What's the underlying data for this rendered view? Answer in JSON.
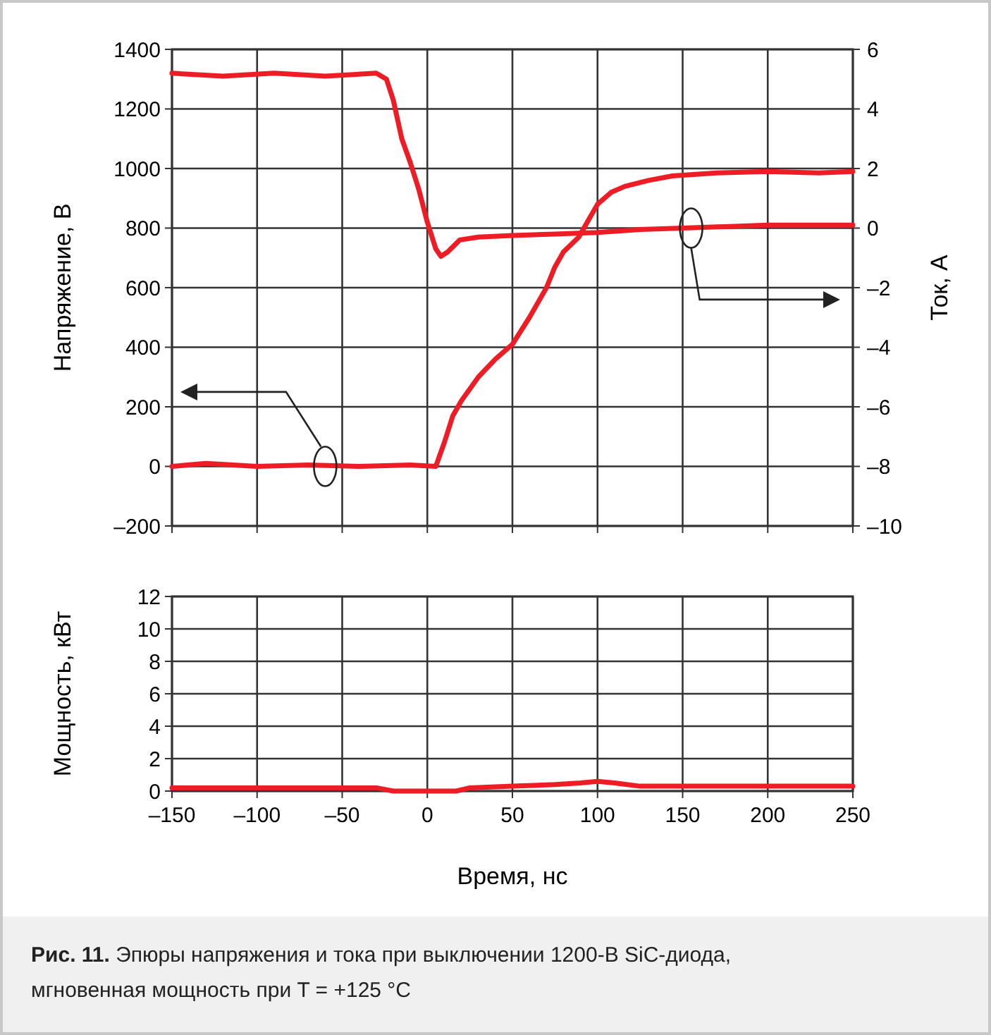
{
  "chart_data": [
    {
      "type": "line",
      "xlim": [
        -150,
        250
      ],
      "xticks": [
        -150,
        -100,
        -50,
        0,
        50,
        100,
        150,
        200,
        250
      ],
      "ylim": [
        -200,
        1400
      ],
      "yticks": [
        {
          "value": -200,
          "label": "–200"
        },
        0,
        200,
        400,
        600,
        800,
        1000,
        1200,
        1400
      ],
      "y2lim": [
        -10,
        6
      ],
      "y2ticks": [
        {
          "value": -10,
          "label": "–10"
        },
        {
          "value": -8,
          "label": "–8"
        },
        {
          "value": -6,
          "label": "–6"
        },
        {
          "value": -4,
          "label": "–4"
        },
        {
          "value": -2,
          "label": "–2"
        },
        0,
        2,
        4,
        6
      ],
      "ylabel": "Напряжение, В",
      "y2label": "Ток, А",
      "grid": true,
      "tick_labels": "y",
      "series": [
        {
          "color": "#ee1c25",
          "x": [
            -150,
            -130,
            -100,
            -70,
            -40,
            -10,
            5,
            10,
            15,
            20,
            30,
            40,
            50,
            60,
            70,
            75,
            80,
            89,
            95,
            100,
            108,
            116,
            130,
            144,
            170,
            200,
            230,
            250
          ],
          "values": [
            0,
            10,
            0,
            5,
            0,
            5,
            0,
            80,
            170,
            220,
            300,
            360,
            410,
            500,
            600,
            670,
            720,
            770,
            830,
            880,
            920,
            940,
            960,
            975,
            985,
            990,
            985,
            990
          ]
        },
        {
          "color": "#ee1c25",
          "axis": "y2",
          "x": [
            -150,
            -120,
            -90,
            -60,
            -30,
            -24,
            -20,
            -15,
            -10,
            -5,
            0,
            5,
            8,
            12,
            19,
            30,
            50,
            75,
            100,
            125,
            150,
            175,
            200,
            250
          ],
          "values": [
            5.2,
            5.1,
            5.2,
            5.1,
            5.2,
            5,
            4.3,
            3,
            2.2,
            1.3,
            0.2,
            -0.7,
            -0.95,
            -0.8,
            -0.4,
            -0.3,
            -0.25,
            -0.2,
            -0.15,
            -0.05,
            0,
            0.05,
            0.1,
            0.1
          ]
        }
      ]
    },
    {
      "type": "line",
      "xlim": [
        -150,
        250
      ],
      "xticks": [
        {
          "value": -150,
          "label": "–150"
        },
        {
          "value": -100,
          "label": "–100"
        },
        {
          "value": -50,
          "label": "–50"
        },
        0,
        50,
        100,
        150,
        200,
        250
      ],
      "ylim": [
        0,
        12
      ],
      "yticks": [
        0,
        2,
        4,
        6,
        8,
        10,
        12
      ],
      "xlabel": "Время, нс",
      "ylabel": "Мощность, кВт",
      "grid": true,
      "annotations": [
        "Рис. 11. Эпюры напряжения и тока при выключении 1200‑В SiC‑диода, мгновенная мощность при T = +125 °C"
      ],
      "series": [
        {
          "color": "#ee1c25",
          "x": [
            -150,
            -100,
            -60,
            -30,
            -20,
            17,
            25,
            50,
            75,
            90,
            100,
            110,
            125,
            150,
            200,
            250
          ],
          "values": [
            0.2,
            0.2,
            0.2,
            0.2,
            0,
            0,
            0.2,
            0.3,
            0.4,
            0.5,
            0.6,
            0.5,
            0.3,
            0.3,
            0.3,
            0.3
          ]
        }
      ]
    }
  ]
}
